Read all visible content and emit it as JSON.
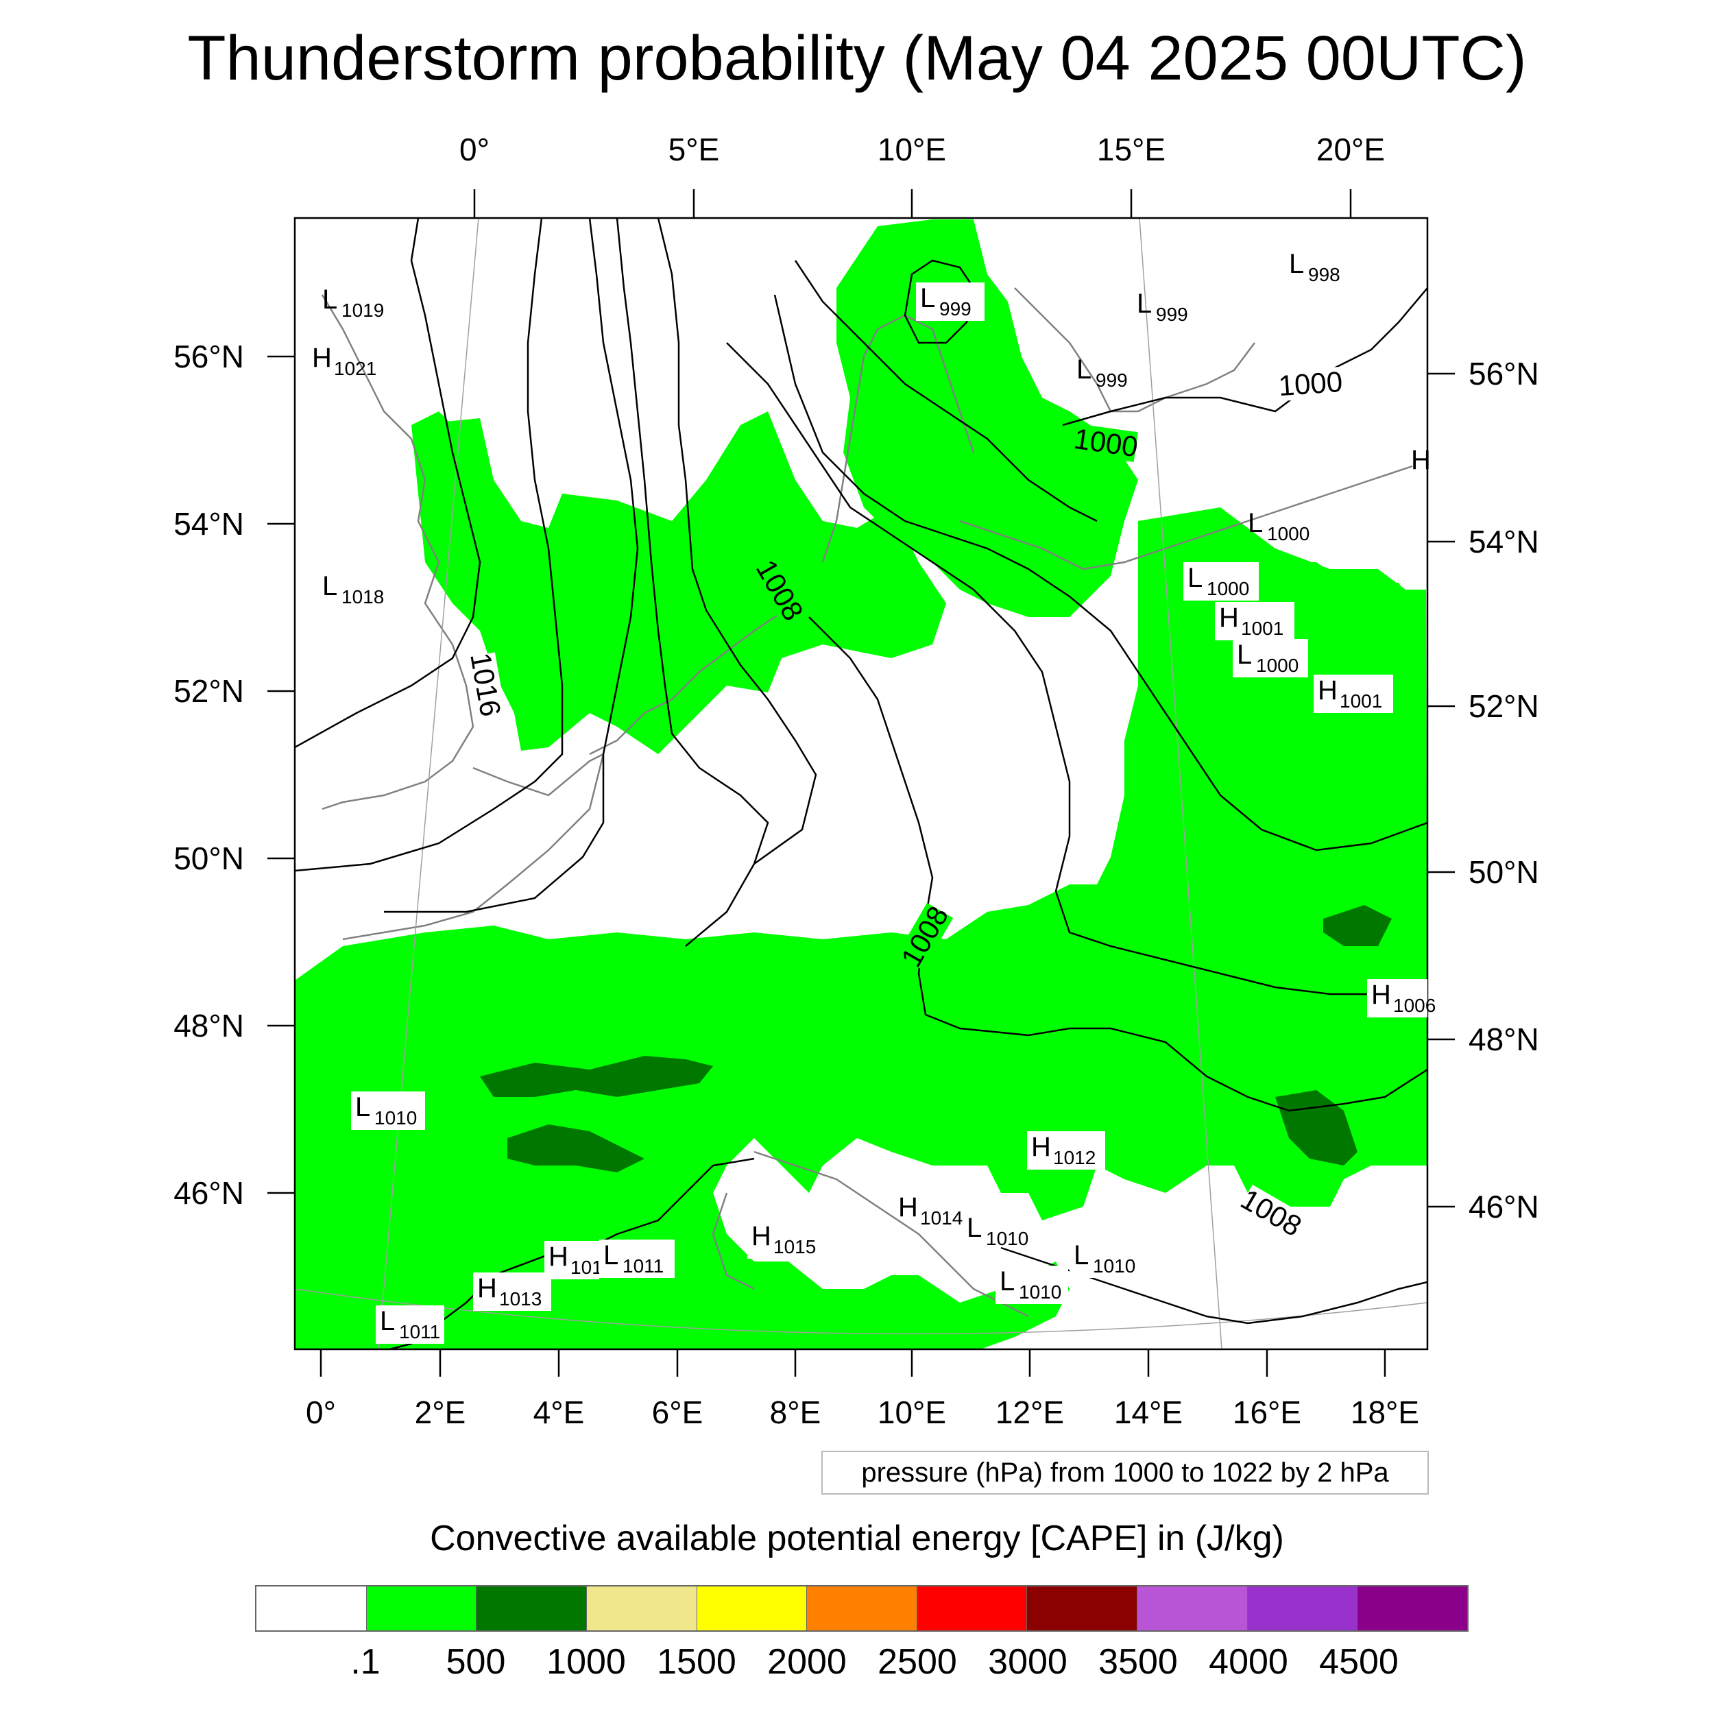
{
  "title": "Thunderstorm probability (May 04 2025 00UTC)",
  "map": {
    "top_lon_labels": [
      "0°",
      "5°E",
      "10°E",
      "15°E",
      "20°E"
    ],
    "bottom_lon_labels": [
      "0°",
      "2°E",
      "4°E",
      "6°E",
      "8°E",
      "10°E",
      "12°E",
      "14°E",
      "16°E",
      "18°E"
    ],
    "left_lat_labels": [
      "56°N",
      "54°N",
      "52°N",
      "50°N",
      "48°N",
      "46°N"
    ],
    "right_lat_labels": [
      "56°N",
      "54°N",
      "52°N",
      "50°N",
      "48°N",
      "46°N"
    ],
    "isobar_labels": [
      "1016",
      "1008",
      "1008",
      "1008",
      "1000",
      "1000"
    ],
    "pressure_centers": [
      {
        "letter": "L",
        "value": "1019"
      },
      {
        "letter": "H",
        "value": "1021"
      },
      {
        "letter": "L",
        "value": "1018"
      },
      {
        "letter": "L",
        "value": "999"
      },
      {
        "letter": "L",
        "value": "999"
      },
      {
        "letter": "L",
        "value": "999"
      },
      {
        "letter": "L",
        "value": "998"
      },
      {
        "letter": "L",
        "value": "1000"
      },
      {
        "letter": "L",
        "value": "1000"
      },
      {
        "letter": "H",
        "value": "1001"
      },
      {
        "letter": "L",
        "value": "1000"
      },
      {
        "letter": "H",
        "value": "1001"
      },
      {
        "letter": "H",
        "value": "1006"
      },
      {
        "letter": "L",
        "value": "1010"
      },
      {
        "letter": "H",
        "value": "1012"
      },
      {
        "letter": "H",
        "value": "1014"
      },
      {
        "letter": "L",
        "value": "1010"
      },
      {
        "letter": "H",
        "value": "1015"
      },
      {
        "letter": "H",
        "value": "101"
      },
      {
        "letter": "L",
        "value": "1011"
      },
      {
        "letter": "L",
        "value": "1010"
      },
      {
        "letter": "L",
        "value": "1010"
      },
      {
        "letter": "H",
        "value": "1013"
      },
      {
        "letter": "L",
        "value": "1011"
      },
      {
        "letter": "H",
        "value": ""
      }
    ],
    "pressure_note": "pressure (hPa) from 1000 to 1022 by 2 hPa"
  },
  "colorbar": {
    "title": "Convective available potential energy [CAPE] in (J/kg)",
    "colors": [
      "#ffffff",
      "#00ff00",
      "#007800",
      "#f0e68c",
      "#ffff00",
      "#ff8000",
      "#ff0000",
      "#8b0000",
      "#b856d7",
      "#9932cc",
      "#8b008b"
    ],
    "labels": [
      ".1",
      "500",
      "1000",
      "1500",
      "2000",
      "2500",
      "3000",
      "3500",
      "4000",
      "4500"
    ]
  }
}
